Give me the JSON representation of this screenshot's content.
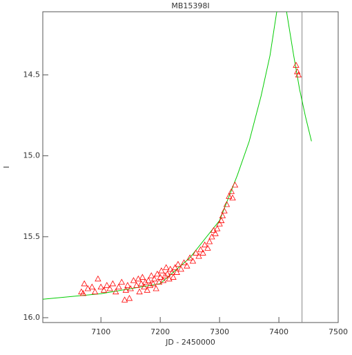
{
  "chart_data": {
    "type": "scatter",
    "title": "MB15398I",
    "x_label": "JD - 2450000",
    "y_label": "I",
    "xlim": [
      7002,
      7500
    ],
    "xticks": [
      7100,
      7200,
      7300,
      7400,
      7500
    ],
    "ylim": [
      14.11,
      16.03
    ],
    "y_inverted": true,
    "yticks": [
      14.5,
      {
        "value": 15,
        "label": "15.0"
      },
      15.5,
      {
        "value": 16,
        "label": "16.0"
      }
    ],
    "color": "#ff0000",
    "x": [
      7067,
      7070,
      7072,
      7078,
      7085,
      7090,
      7095,
      7100,
      7105,
      7110,
      7115,
      7120,
      7125,
      7130,
      7135,
      7140,
      7142,
      7145,
      7148,
      7150,
      7155,
      7160,
      7163,
      7165,
      7168,
      7170,
      7173,
      7175,
      7178,
      7180,
      7183,
      7185,
      7188,
      7190,
      7193,
      7195,
      7198,
      7200,
      7202,
      7205,
      7208,
      7210,
      7212,
      7215,
      7217,
      7220,
      7222,
      7225,
      7228,
      7230,
      7235,
      7240,
      7245,
      7250,
      7255,
      7260,
      7265,
      7268,
      7272,
      7275,
      7280,
      7283,
      7287,
      7290,
      7293,
      7296,
      7300,
      7303,
      7305,
      7308,
      7312,
      7316,
      7320,
      7322,
      7326,
      7429,
      7431,
      7433
    ],
    "values": [
      15.84,
      15.85,
      15.79,
      15.82,
      15.81,
      15.84,
      15.76,
      15.81,
      15.83,
      15.8,
      15.82,
      15.79,
      15.84,
      15.81,
      15.78,
      15.89,
      15.83,
      15.8,
      15.88,
      15.82,
      15.77,
      15.8,
      15.76,
      15.84,
      15.79,
      15.75,
      15.81,
      15.78,
      15.83,
      15.77,
      15.8,
      15.74,
      15.79,
      15.76,
      15.82,
      15.73,
      15.78,
      15.75,
      15.71,
      15.77,
      15.74,
      15.69,
      15.73,
      15.76,
      15.7,
      15.72,
      15.75,
      15.69,
      15.72,
      15.67,
      15.7,
      15.66,
      15.68,
      15.63,
      15.65,
      15.6,
      15.62,
      15.58,
      15.6,
      15.55,
      15.57,
      15.53,
      15.5,
      15.46,
      15.48,
      15.45,
      15.42,
      15.4,
      15.37,
      15.34,
      15.3,
      15.25,
      15.22,
      15.26,
      15.18,
      14.44,
      14.48,
      14.5
    ],
    "model": {
      "color": "#00cc00",
      "x": [
        7002,
        7100,
        7200,
        7250,
        7300,
        7330,
        7350,
        7370,
        7385,
        7396,
        7400,
        7405,
        7410,
        7413,
        7425,
        7435,
        7445,
        7455
      ],
      "values": [
        15.886,
        15.852,
        15.79,
        15.63,
        15.4,
        15.12,
        14.91,
        14.63,
        14.38,
        14.12,
        14.05,
        14.02,
        14.06,
        14.11,
        14.38,
        14.59,
        14.76,
        14.91
      ]
    },
    "vline": {
      "value": 7439,
      "color": "#888888"
    }
  }
}
